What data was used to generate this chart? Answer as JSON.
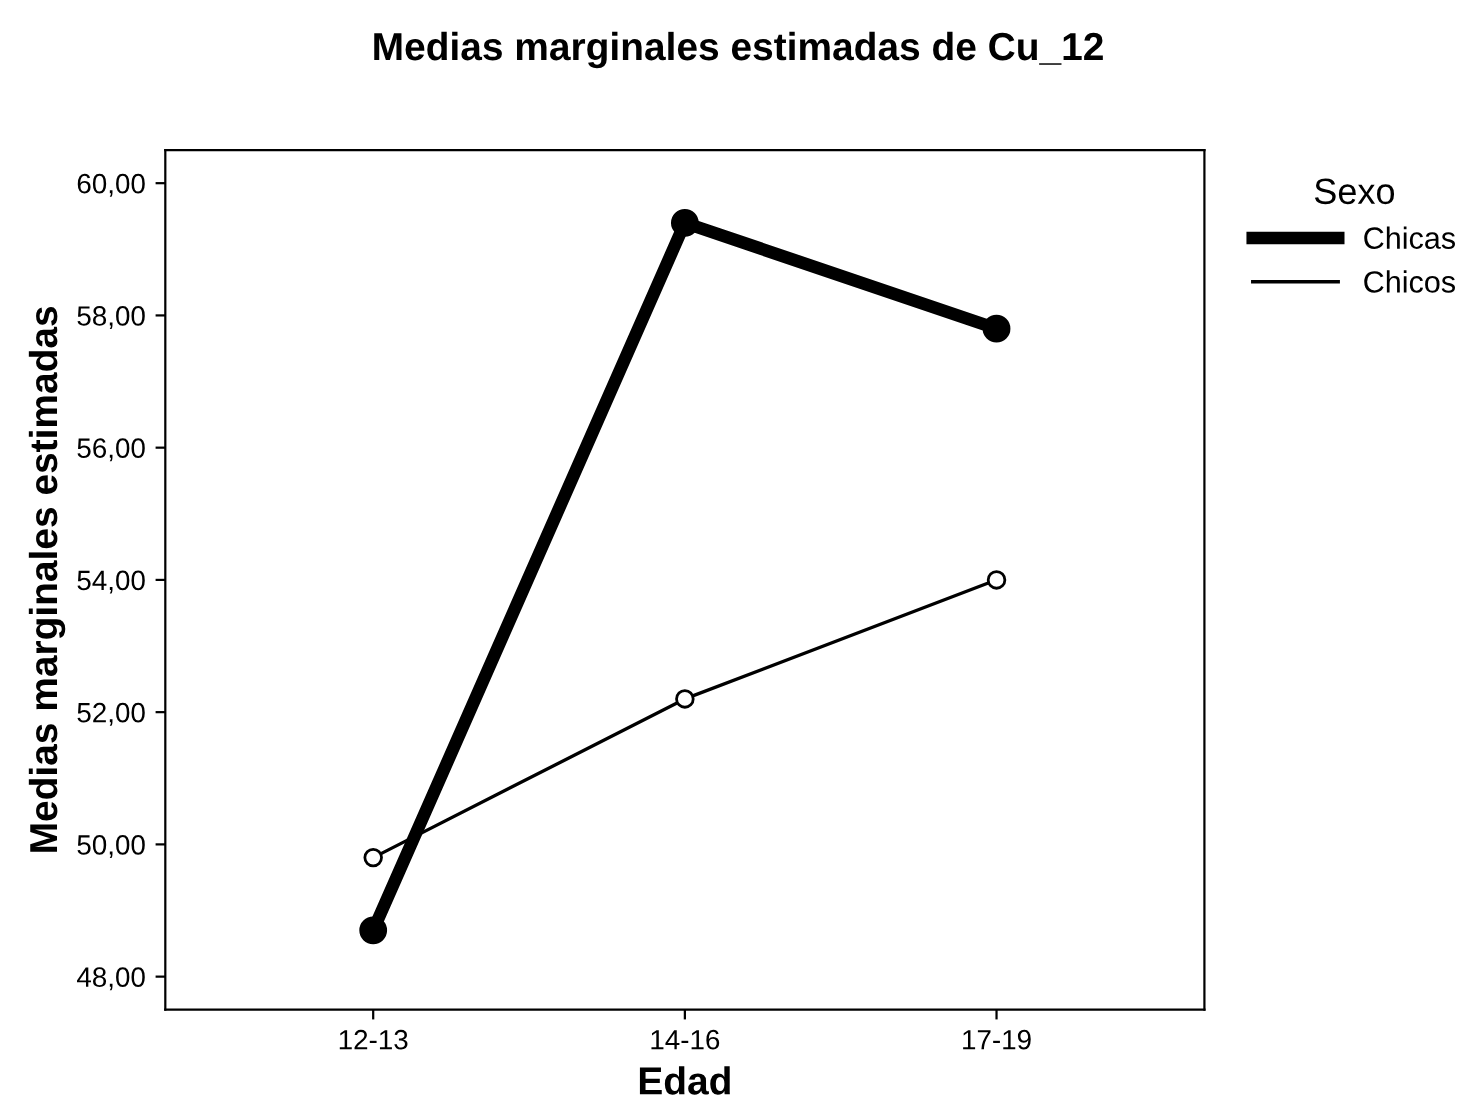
{
  "chart_data": {
    "type": "line",
    "title": "Medias marginales estimadas de Cu_12",
    "xlabel": "Edad",
    "ylabel": "Medias marginales estimadas",
    "legend_title": "Sexo",
    "categories": [
      "12-13",
      "14-16",
      "17-19"
    ],
    "series": [
      {
        "name": "Chicas",
        "color": "#000000",
        "values": [
          48.7,
          59.4,
          57.8
        ]
      },
      {
        "name": "Chicos",
        "color": "#000000",
        "values": [
          49.8,
          52.2,
          54.0
        ]
      }
    ],
    "ylim": [
      47.5,
      60.5
    ],
    "yticks": [
      {
        "value": 48,
        "label": "48,00"
      },
      {
        "value": 50,
        "label": "50,00"
      },
      {
        "value": 52,
        "label": "52,00"
      },
      {
        "value": 54,
        "label": "54,00"
      },
      {
        "value": 56,
        "label": "56,00"
      },
      {
        "value": 58,
        "label": "58,00"
      },
      {
        "value": 60,
        "label": "60,00"
      }
    ],
    "marker": "circle",
    "grid": false,
    "legend": "top right"
  }
}
